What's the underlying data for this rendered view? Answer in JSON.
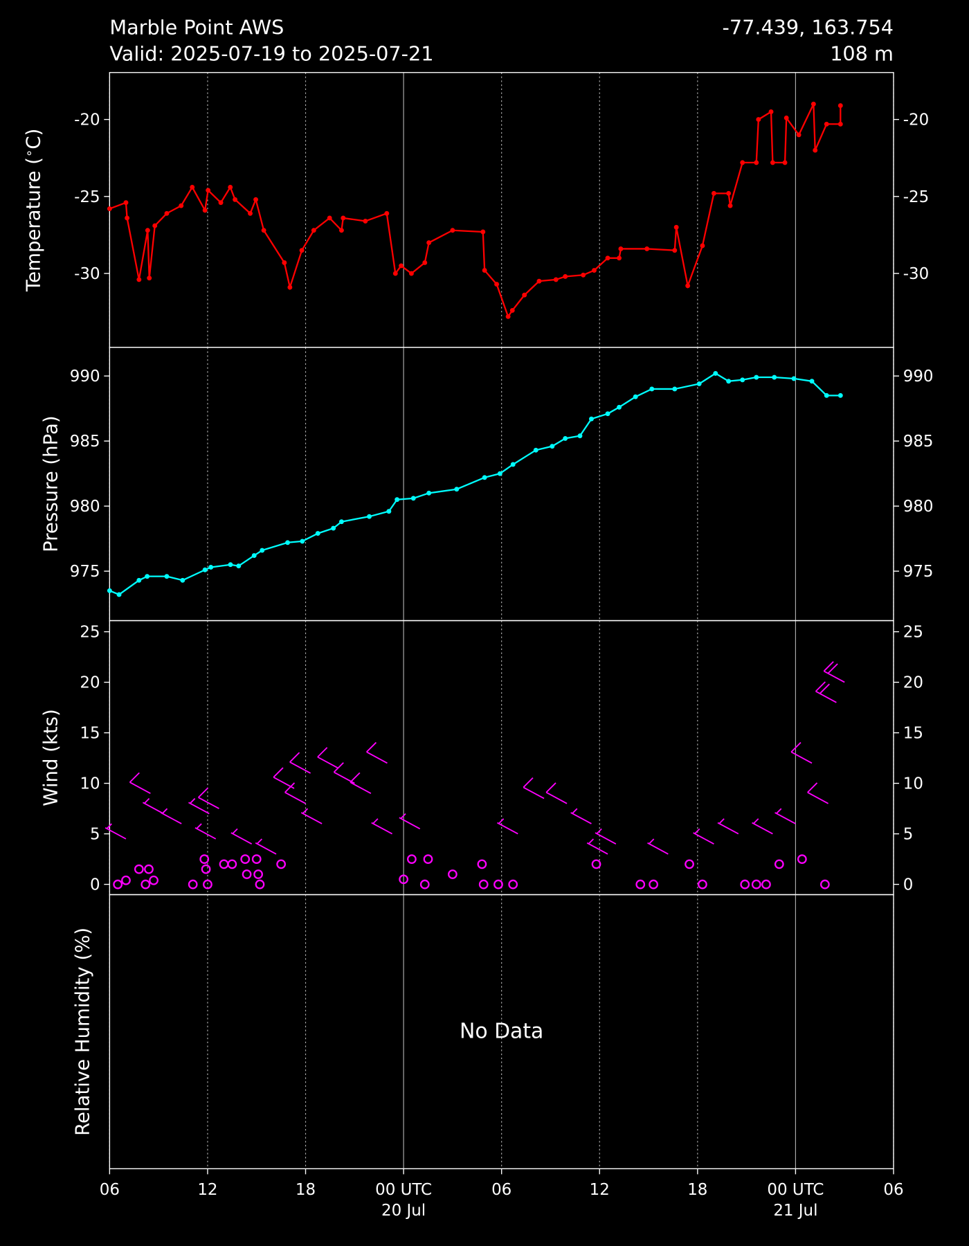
{
  "header": {
    "station": "Marble Point AWS",
    "valid": "Valid: 2025-07-19 to 2025-07-21",
    "coords": "-77.439, 163.754",
    "elevation": "108 m"
  },
  "x_axis": {
    "xlim": [
      0,
      48
    ],
    "xticks": [
      {
        "value": 0,
        "label": "06"
      },
      {
        "value": 6,
        "label": "12"
      },
      {
        "value": 12,
        "label": "18"
      },
      {
        "value": 18,
        "label": "00 UTC\n20 Jul"
      },
      {
        "value": 24,
        "label": "06"
      },
      {
        "value": 30,
        "label": "12"
      },
      {
        "value": 36,
        "label": "18"
      },
      {
        "value": 42,
        "label": "00 UTC\n21 Jul"
      },
      {
        "value": 48,
        "label": "06"
      }
    ]
  },
  "chart_data": [
    {
      "type": "line",
      "ylabel": "Temperature ($^\\circ$C)",
      "color": "#ff0000",
      "ylim": [
        -34.8,
        -16.95
      ],
      "yticks": [
        -30,
        -25,
        -20
      ],
      "x": [
        0,
        1.0,
        1.07,
        1.8,
        2.33,
        2.43,
        2.77,
        3.5,
        4.38,
        5.06,
        5.84,
        6.03,
        6.81,
        7.39,
        7.68,
        8.61,
        8.95,
        9.44,
        10.7,
        11.04,
        11.77,
        12.5,
        13.47,
        14.2,
        14.3,
        15.66,
        16.97,
        17.5,
        17.85,
        18.48,
        19.3,
        19.55,
        21.0,
        22.86,
        22.96,
        23.7,
        24.4,
        24.66,
        25.4,
        26.3,
        27.33,
        27.9,
        29.0,
        29.67,
        30.5,
        31.2,
        31.3,
        32.9,
        34.6,
        34.7,
        35.4,
        36.3,
        37.0,
        37.9,
        38.0,
        38.75,
        39.6,
        39.73,
        40.5,
        40.6,
        41.35,
        41.44,
        42.2,
        43.1,
        43.2,
        43.9,
        44.75,
        44.75
      ],
      "values": [
        -25.8,
        -25.4,
        -26.4,
        -30.4,
        -27.2,
        -30.3,
        -26.9,
        -26.1,
        -25.6,
        -24.4,
        -25.9,
        -24.6,
        -25.4,
        -24.4,
        -25.2,
        -26.1,
        -25.2,
        -27.2,
        -29.3,
        -30.9,
        -28.5,
        -27.2,
        -26.4,
        -27.2,
        -26.4,
        -26.6,
        -26.1,
        -30.0,
        -29.5,
        -30.0,
        -29.3,
        -28.0,
        -27.2,
        -27.3,
        -29.8,
        -30.7,
        -32.8,
        -32.4,
        -31.4,
        -30.5,
        -30.4,
        -30.2,
        -30.1,
        -29.8,
        -29.0,
        -29.0,
        -28.4,
        -28.4,
        -28.5,
        -27.0,
        -30.8,
        -28.2,
        -24.8,
        -24.8,
        -25.6,
        -22.8,
        -22.8,
        -20.0,
        -19.5,
        -22.8,
        -22.8,
        -19.9,
        -21.0,
        -19.0,
        -22.0,
        -20.3,
        -20.3,
        -19.1
      ]
    },
    {
      "type": "line",
      "ylabel": "Pressure (hPa)",
      "color": "#00ffff",
      "ylim": [
        971.2,
        992.2
      ],
      "yticks": [
        975,
        980,
        985,
        990
      ],
      "x": [
        0,
        0.58,
        1.8,
        2.3,
        3.5,
        4.47,
        5.84,
        6.2,
        7.4,
        7.9,
        8.85,
        9.34,
        10.9,
        11.8,
        12.75,
        13.7,
        14.2,
        15.9,
        17.1,
        17.6,
        18.6,
        19.55,
        21.25,
        22.96,
        23.9,
        24.7,
        26.1,
        27.1,
        27.9,
        28.8,
        29.5,
        30.5,
        31.2,
        32.2,
        33.2,
        34.6,
        36.1,
        37.1,
        37.9,
        38.75,
        39.6,
        40.7,
        41.9,
        43.0,
        43.9,
        44.75
      ],
      "values": [
        973.5,
        973.2,
        974.3,
        974.6,
        974.6,
        974.3,
        975.1,
        975.3,
        975.5,
        975.4,
        976.2,
        976.6,
        977.2,
        977.3,
        977.9,
        978.3,
        978.8,
        979.2,
        979.6,
        980.5,
        980.6,
        981.0,
        981.3,
        982.2,
        982.5,
        983.2,
        984.3,
        984.6,
        985.2,
        985.4,
        986.7,
        987.1,
        987.6,
        988.4,
        989.0,
        989.0,
        989.4,
        990.2,
        989.6,
        989.7,
        989.9,
        989.9,
        989.8,
        989.6,
        988.5,
        988.5
      ]
    },
    {
      "type": "barbs",
      "ylabel": "Wind (kts)",
      "color": "#ff00ff",
      "ylim": [
        -1.02,
        26.1
      ],
      "yticks": [
        0,
        5,
        10,
        15,
        20,
        25
      ],
      "x": [
        0.5,
        1.0,
        1.0,
        1.8,
        2.2,
        2.4,
        2.7,
        2.5,
        3.3,
        4.4,
        5.1,
        5.8,
        5.9,
        6.0,
        6.1,
        6.5,
        6.7,
        7.0,
        7.5,
        8.3,
        8.4,
        8.7,
        9.0,
        9.1,
        9.2,
        10.2,
        10.5,
        11.3,
        12.0,
        12.3,
        13.0,
        14.0,
        15.0,
        16.0,
        17.0,
        17.3,
        18.0,
        18.5,
        19.0,
        19.3,
        19.5,
        21.0,
        22.8,
        22.9,
        23.8,
        24.7,
        25.0,
        26.6,
        28.0,
        29.5,
        29.8,
        30.5,
        31.0,
        32.5,
        33.3,
        34.2,
        35.5,
        36.3,
        37.0,
        38.5,
        38.9,
        39.6,
        40.2,
        40.6,
        41.0,
        42.0,
        42.4,
        43.0,
        43.8,
        44.0,
        44.5,
        45.0
      ],
      "values": [
        0,
        0.4,
        4.5,
        1.5,
        0,
        1.5,
        0.4,
        9,
        7,
        6,
        0,
        2.5,
        1.5,
        0,
        7,
        4.5,
        7.5,
        2,
        2,
        2.5,
        1,
        4,
        2.5,
        1,
        0,
        3,
        2,
        9.5,
        8,
        11,
        6,
        11.5,
        10,
        9,
        12,
        5,
        0.5,
        2.5,
        5.5,
        0,
        2.5,
        1,
        2,
        0,
        0,
        0,
        5,
        8.5,
        8,
        6,
        2,
        3,
        4,
        0,
        0,
        3,
        2,
        0,
        4,
        5,
        0,
        0,
        0,
        5,
        2,
        6,
        2.5,
        12,
        0,
        8,
        18,
        20
      ]
    },
    {
      "type": "empty",
      "ylabel": "Relative Humidity (%)",
      "annotation": "No Data"
    }
  ]
}
